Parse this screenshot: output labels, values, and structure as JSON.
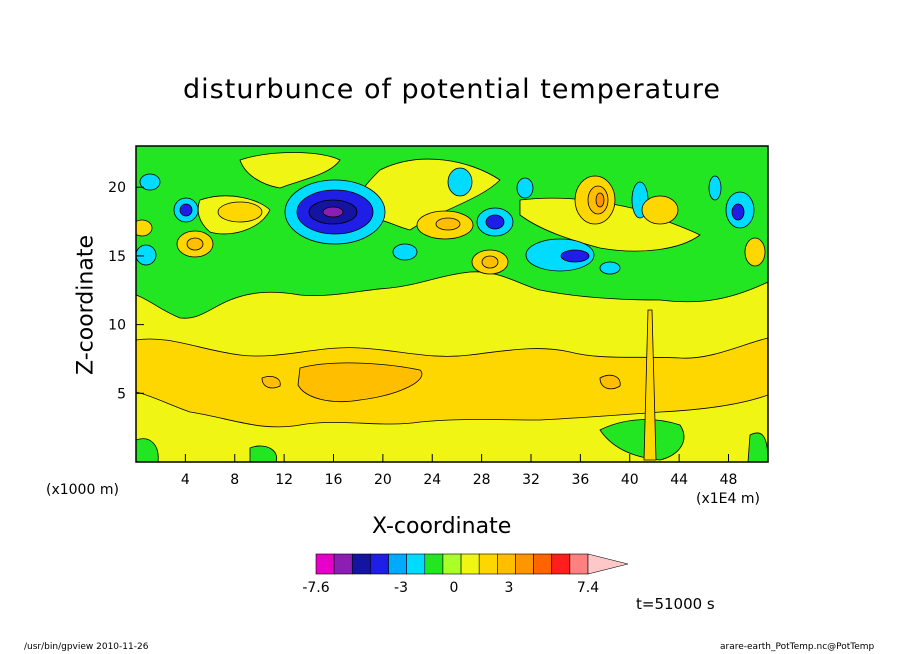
{
  "title": "disturbunce of potential temperature",
  "footer_left": "/usr/bin/gpview  2010-11-26",
  "footer_right": "arare-earth_PotTemp.nc@PotTemp",
  "time_label": "t=51000 s",
  "x_unit_left": "(x1000 m)",
  "x_unit_right": "(x1E4 m)",
  "colorbar": {
    "colors": [
      "#e600c8",
      "#8c1eb4",
      "#1414a0",
      "#1e1ee6",
      "#00aaff",
      "#00dcff",
      "#23e623",
      "#aaff28",
      "#f0f514",
      "#ffd700",
      "#ffbe00",
      "#ff9600",
      "#ff6400",
      "#ff1e1e",
      "#ff8080",
      "#ffc8c8"
    ],
    "labels": [
      {
        "text": "-7.6",
        "pos": "left"
      },
      {
        "text": "-3",
        "pos": "mid1"
      },
      {
        "text": "0",
        "pos": "mid2"
      },
      {
        "text": "3",
        "pos": "mid3"
      },
      {
        "text": "7.4",
        "pos": "right"
      }
    ]
  },
  "chart_data": {
    "type": "heatmap",
    "title": "disturbunce of potential temperature",
    "xlabel": "X-coordinate",
    "ylabel": "Z-coordinate",
    "x_ticks": [
      "4",
      "8",
      "12",
      "16",
      "20",
      "24",
      "28",
      "32",
      "36",
      "40",
      "44",
      "48"
    ],
    "y_ticks": [
      "5",
      "10",
      "15",
      "20"
    ],
    "xlim": [
      0,
      51.2
    ],
    "ylim": [
      0,
      23
    ],
    "colorbar_labels": [
      "-7.6",
      "-3",
      "0",
      "3",
      "7.4"
    ],
    "time": "t=51000 s",
    "grid": false
  }
}
